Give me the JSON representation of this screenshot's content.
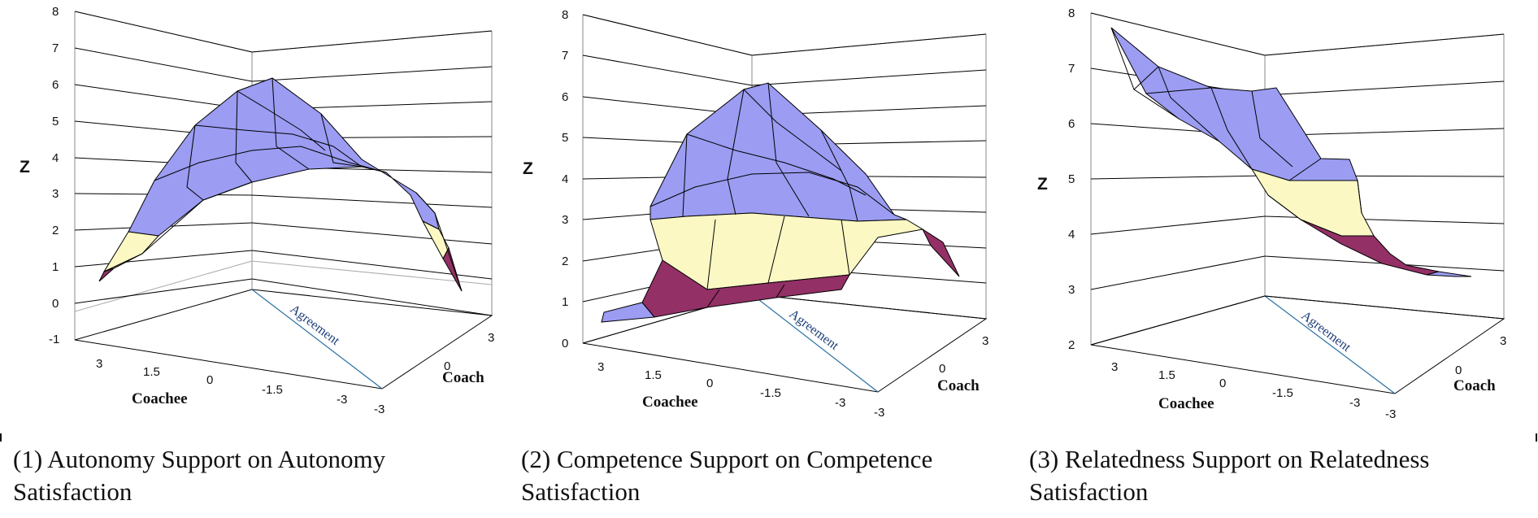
{
  "figure": {
    "panels": [
      {
        "caption": "(1) Autonomy Support on Autonomy Satisfaction",
        "z_label": "Z",
        "coachee_label": "Coachee",
        "coach_label": "Coach",
        "agreement_label": "Agreement",
        "z_ticks": [
          "8",
          "7",
          "6",
          "5",
          "4",
          "3",
          "2",
          "1",
          "0",
          "-1"
        ],
        "coachee_ticks": [
          "3",
          "1.5",
          "0",
          "-1.5",
          "-3"
        ],
        "coach_ticks": [
          "3",
          "0",
          "-3"
        ]
      },
      {
        "caption": "(2) Competence Support on Competence Satisfaction",
        "z_label": "Z",
        "coachee_label": "Coachee",
        "coach_label": "Coach",
        "agreement_label": "Agreement",
        "z_ticks": [
          "8",
          "7",
          "6",
          "5",
          "4",
          "3",
          "2",
          "1",
          "0"
        ],
        "coachee_ticks": [
          "3",
          "1.5",
          "0",
          "-1.5",
          "-3"
        ],
        "coach_ticks": [
          "3",
          "0",
          "-3"
        ]
      },
      {
        "caption": "(3) Relatedness Support on Relatedness Satisfaction",
        "z_label": "Z",
        "coachee_label": "Coachee",
        "coach_label": "Coach",
        "agreement_label": "Agreement",
        "z_ticks": [
          "8",
          "7",
          "6",
          "5",
          "4",
          "3",
          "2"
        ],
        "coachee_ticks": [
          "3",
          "1.5",
          "0",
          "-1.5",
          "-3"
        ],
        "coach_ticks": [
          "3",
          "0",
          "-3"
        ]
      }
    ],
    "colors": {
      "band_high": "#9b9cf2",
      "band_mid": "#fbf8c4",
      "band_low": "#933066",
      "grid": "#000000",
      "agreement_line": "#2b6fa0"
    }
  },
  "chart_data": [
    {
      "type": "surface",
      "title": "(1) Autonomy Support on Autonomy Satisfaction",
      "zlabel": "Z",
      "xlabel": "Coachee",
      "ylabel": "Coach",
      "zlim": [
        -1,
        8
      ],
      "x_ticks": [
        3,
        1.5,
        0,
        -1.5,
        -3
      ],
      "y_ticks": [
        3,
        0,
        -3
      ],
      "line_annotation": "Agreement",
      "color_bands": [
        {
          "range": [
            0,
            1
          ],
          "color": "#933066"
        },
        {
          "range": [
            1,
            2
          ],
          "color": "#fbf8c4"
        },
        {
          "range": [
            2,
            8
          ],
          "color": "#9b9cf2"
        }
      ],
      "edge_profile_z": [
        0.7,
        3.1,
        4.1,
        2.6,
        0.2
      ],
      "ridge_peak_z": 6.0,
      "grid": true
    },
    {
      "type": "surface",
      "title": "(2) Competence Support on Competence Satisfaction",
      "zlabel": "Z",
      "xlabel": "Coachee",
      "ylabel": "Coach",
      "zlim": [
        0,
        8
      ],
      "x_ticks": [
        3,
        1.5,
        0,
        -1.5,
        -3
      ],
      "y_ticks": [
        3,
        0,
        -3
      ],
      "line_annotation": "Agreement",
      "color_bands": [
        {
          "range": [
            0,
            2
          ],
          "color": "#933066"
        },
        {
          "range": [
            2,
            3
          ],
          "color": "#fbf8c4"
        },
        {
          "range": [
            3,
            8
          ],
          "color": "#9b9cf2"
        }
      ],
      "edge_profile_z": [
        0.6,
        0.8,
        1.0,
        1.3,
        2.6,
        1.7
      ],
      "ridge_peak_z": 6.3,
      "grid": true
    },
    {
      "type": "surface",
      "title": "(3) Relatedness Support on Relatedness Satisfaction",
      "zlabel": "Z",
      "xlabel": "Coachee",
      "ylabel": "Coach",
      "zlim": [
        2,
        8
      ],
      "x_ticks": [
        3,
        1.5,
        0,
        -1.5,
        -3
      ],
      "y_ticks": [
        3,
        0,
        -3
      ],
      "line_annotation": "Agreement",
      "color_bands": [
        {
          "range": [
            2,
            4
          ],
          "color": "#933066"
        },
        {
          "range": [
            4,
            5
          ],
          "color": "#fbf8c4"
        },
        {
          "range": [
            5,
            8
          ],
          "color": "#9b9cf2"
        }
      ],
      "edge_profile_z": [
        7.6,
        6.6,
        5.5,
        4.6,
        3.6
      ],
      "grid": true
    }
  ]
}
